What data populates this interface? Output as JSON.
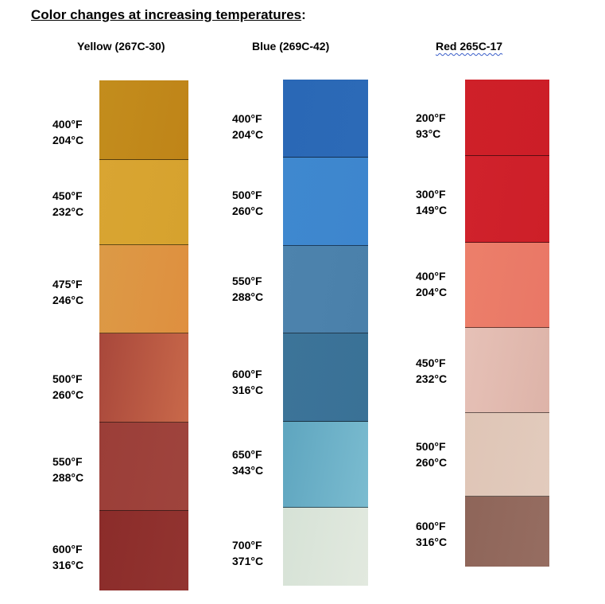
{
  "title": {
    "text": "Color changes at increasing temperatures",
    "suffix": ":"
  },
  "columns": [
    {
      "name": "Yellow (267C-30)",
      "swatches": [
        {
          "f": "400°F",
          "c": "204°C",
          "color": "#c38d1d",
          "color2": "#bf8418"
        },
        {
          "f": "450°F",
          "c": "232°C",
          "color": "#d9a532",
          "color2": "#d6a22e"
        },
        {
          "f": "475°F",
          "c": "246°C",
          "color": "#dc9a46",
          "color2": "#df8f3f"
        },
        {
          "f": "500°F",
          "c": "260°C",
          "color": "#a8473b",
          "color2": "#c9694a"
        },
        {
          "f": "550°F",
          "c": "288°C",
          "color": "#9b3e38",
          "color2": "#9f443d"
        },
        {
          "f": "600°F",
          "c": "316°C",
          "color": "#8b2c2a",
          "color2": "#923430"
        }
      ]
    },
    {
      "name": "Blue (269C-42)",
      "swatches": [
        {
          "f": "400°F",
          "c": "204°C",
          "color": "#2a68b6",
          "color2": "#2c6ab7"
        },
        {
          "f": "500°F",
          "c": "260°C",
          "color": "#3f88cf",
          "color2": "#3d86ce"
        },
        {
          "f": "550°F",
          "c": "288°C",
          "color": "#4d83ad",
          "color2": "#4a80aa"
        },
        {
          "f": "600°F",
          "c": "316°C",
          "color": "#3c7499",
          "color2": "#3a7196"
        },
        {
          "f": "650°F",
          "c": "343°C",
          "color": "#5ea5bf",
          "color2": "#7bbcd0"
        },
        {
          "f": "700°F",
          "c": "371°C",
          "color": "#d6e2d6",
          "color2": "#e2e9df"
        }
      ]
    },
    {
      "name": "Red  265C-17",
      "swatches": [
        {
          "f": "200°F",
          "c": "93°C",
          "color": "#cf2029",
          "color2": "#cc1e27"
        },
        {
          "f": "300°F",
          "c": "149°C",
          "color": "#d0222c",
          "color2": "#cd1f28"
        },
        {
          "f": "400°F",
          "c": "204°C",
          "color": "#ec7f6a",
          "color2": "#e97766"
        },
        {
          "f": "450°F",
          "c": "232°C",
          "color": "#e6c1b7",
          "color2": "#ddb3a8"
        },
        {
          "f": "500°F",
          "c": "260°C",
          "color": "#dfc5b6",
          "color2": "#e2cbbd"
        },
        {
          "f": "600°F",
          "c": "316°C",
          "color": "#8e6559",
          "color2": "#966d61"
        }
      ]
    }
  ]
}
